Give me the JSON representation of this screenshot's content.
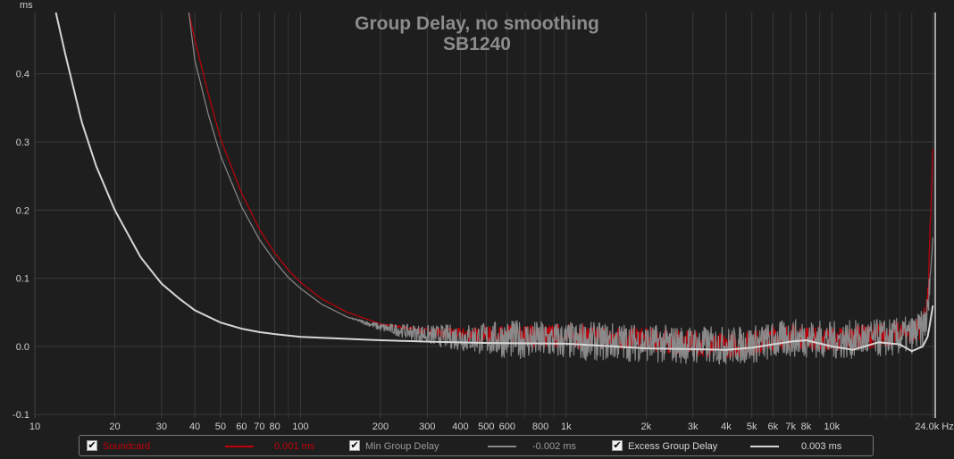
{
  "chart_data": {
    "type": "line",
    "title": "Group Delay, no smoothing",
    "subtitle": "SB1240",
    "y_unit": "ms",
    "x_unit": "Hz",
    "x_scale": "log",
    "xlim": [
      10,
      24500
    ],
    "ylim": [
      -0.105,
      0.49
    ],
    "x_ticks": [
      {
        "v": 10,
        "label": "10"
      },
      {
        "v": 20,
        "label": "20"
      },
      {
        "v": 30,
        "label": "30"
      },
      {
        "v": 40,
        "label": "40"
      },
      {
        "v": 50,
        "label": "50"
      },
      {
        "v": 60,
        "label": "60"
      },
      {
        "v": 70,
        "label": "70"
      },
      {
        "v": 80,
        "label": "80"
      },
      {
        "v": 100,
        "label": "100"
      },
      {
        "v": 200,
        "label": "200"
      },
      {
        "v": 300,
        "label": "300"
      },
      {
        "v": 400,
        "label": "400"
      },
      {
        "v": 500,
        "label": "500"
      },
      {
        "v": 600,
        "label": "600"
      },
      {
        "v": 800,
        "label": "800"
      },
      {
        "v": 1000,
        "label": "1k"
      },
      {
        "v": 2000,
        "label": "2k"
      },
      {
        "v": 3000,
        "label": "3k"
      },
      {
        "v": 4000,
        "label": "4k"
      },
      {
        "v": 5000,
        "label": "5k"
      },
      {
        "v": 6000,
        "label": "6k"
      },
      {
        "v": 7000,
        "label": "7k"
      },
      {
        "v": 8000,
        "label": "8k"
      },
      {
        "v": 10000,
        "label": "10k"
      },
      {
        "v": 24000,
        "label": "24.0k Hz"
      }
    ],
    "x_minor_grid": [
      90,
      700,
      900,
      7000,
      9000,
      14000,
      16000,
      18000,
      20000
    ],
    "y_ticks": [
      {
        "v": 0.4,
        "label": "0.4"
      },
      {
        "v": 0.3,
        "label": "0.3"
      },
      {
        "v": 0.2,
        "label": "0.2"
      },
      {
        "v": 0.1,
        "label": "0.1"
      },
      {
        "v": 0.0,
        "label": "0.0"
      },
      {
        "v": -0.1,
        "label": "-0.1"
      }
    ],
    "grid": true,
    "background": "#1e1e1e",
    "series": [
      {
        "name": "Soundcard",
        "color": "#c0000a",
        "legend_value": "0.001 ms",
        "x": [
          38,
          40,
          45,
          50,
          60,
          70,
          80,
          90,
          100,
          120,
          150,
          200,
          300,
          400,
          500,
          700,
          1000,
          1500,
          2000,
          3000,
          4000,
          5000,
          6000,
          7000,
          8000,
          10000,
          12000,
          15000,
          18000,
          20000,
          22000,
          23000,
          24000
        ],
        "y": [
          0.49,
          0.45,
          0.37,
          0.305,
          0.225,
          0.172,
          0.137,
          0.112,
          0.094,
          0.07,
          0.05,
          0.033,
          0.022,
          0.018,
          0.017,
          0.016,
          0.015,
          0.013,
          0.01,
          0.004,
          0.001,
          0.005,
          0.012,
          0.015,
          0.014,
          0.01,
          0.012,
          0.016,
          0.018,
          0.021,
          0.03,
          0.07,
          0.29
        ]
      },
      {
        "name": "Min Group Delay",
        "color": "#8a8a8a",
        "legend_value": "-0.002 ms",
        "x": [
          38,
          40,
          45,
          50,
          60,
          70,
          80,
          90,
          100,
          120,
          150,
          200,
          300,
          400,
          500,
          700,
          1000,
          1500,
          2000,
          3000,
          4000,
          5000,
          6000,
          7000,
          8000,
          10000,
          12000,
          15000,
          18000,
          20000,
          22000,
          23000,
          24000
        ],
        "y": [
          0.49,
          0.42,
          0.34,
          0.28,
          0.205,
          0.157,
          0.125,
          0.101,
          0.085,
          0.062,
          0.043,
          0.028,
          0.017,
          0.013,
          0.011,
          0.01,
          0.008,
          0.007,
          0.005,
          0.002,
          0.001,
          0.003,
          0.008,
          0.012,
          0.012,
          0.009,
          0.01,
          0.012,
          0.014,
          0.017,
          0.025,
          0.05,
          0.16
        ]
      },
      {
        "name": "Excess Group Delay",
        "color": "#d6d6d6",
        "legend_value": "0.003 ms",
        "x": [
          12,
          13,
          15,
          17,
          20,
          25,
          30,
          35,
          40,
          50,
          60,
          70,
          80,
          100,
          150,
          200,
          300,
          500,
          1000,
          1500,
          2000,
          3000,
          4000,
          5000,
          6000,
          7000,
          8000,
          10000,
          12000,
          15000,
          18000,
          20000,
          22000,
          23000,
          24000
        ],
        "y": [
          0.49,
          0.43,
          0.33,
          0.265,
          0.2,
          0.131,
          0.092,
          0.07,
          0.053,
          0.035,
          0.026,
          0.021,
          0.018,
          0.014,
          0.011,
          0.009,
          0.007,
          0.005,
          0.004,
          0.0,
          -0.003,
          -0.004,
          -0.005,
          -0.002,
          0.003,
          0.007,
          0.009,
          0.0,
          -0.005,
          0.006,
          0.003,
          -0.007,
          0.0,
          0.015,
          0.06
        ]
      }
    ],
    "noise_bands": [
      {
        "series": "Soundcard",
        "from_hz": 200,
        "to_hz": 23500,
        "amplitude_ms": 0.018
      },
      {
        "series": "Min Group Delay",
        "from_hz": 150,
        "to_hz": 23500,
        "amplitude_ms": 0.028
      }
    ]
  },
  "legend": {
    "items": [
      {
        "label": "Soundcard",
        "value": "0.001 ms",
        "color": "#c0000a",
        "label_color": "#c0000a",
        "value_color": "#c0000a",
        "checked": "✔"
      },
      {
        "label": "Min Group Delay",
        "value": "-0.002 ms",
        "color": "#8a8a8a",
        "label_color": "#9a9a9a",
        "value_color": "#9a9a9a",
        "checked": "✔"
      },
      {
        "label": "Excess Group Delay",
        "value": "0.003 ms",
        "color": "#d6d6d6",
        "label_color": "#d6d6d6",
        "value_color": "#d6d6d6",
        "checked": "✔"
      }
    ]
  }
}
